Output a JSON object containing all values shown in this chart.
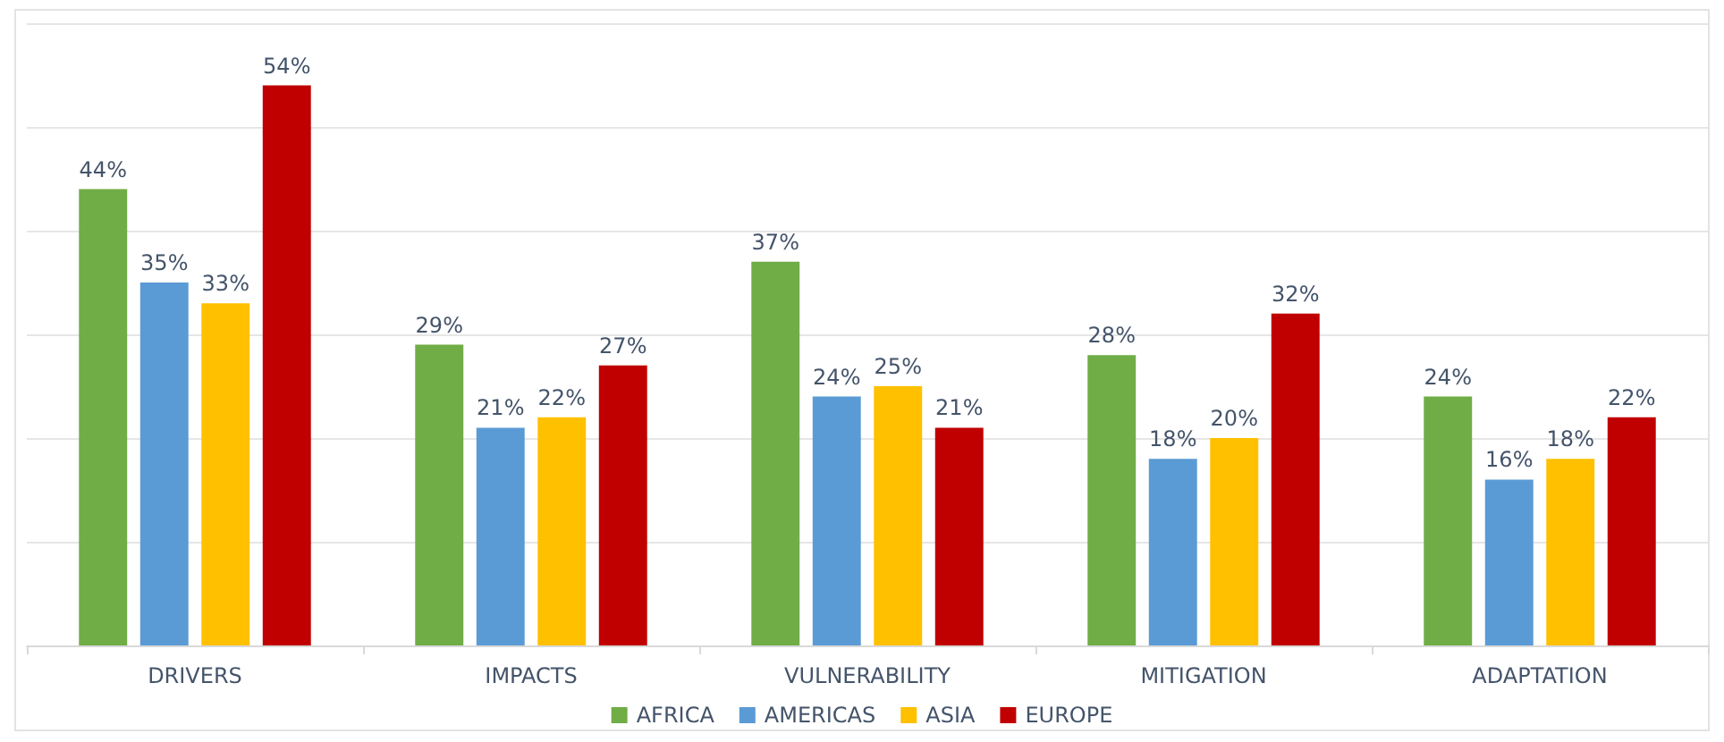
{
  "chart_data": {
    "type": "bar",
    "categories": [
      "DRIVERS",
      "IMPACTS",
      "VULNERABILITY",
      "MITIGATION",
      "ADAPTATION"
    ],
    "series": [
      {
        "name": "AFRICA",
        "color": "#70ad47",
        "values": [
          44,
          29,
          37,
          28,
          24
        ],
        "value_labels": [
          "44%",
          "29%",
          "37%",
          "28%",
          "24%"
        ]
      },
      {
        "name": "AMERICAS",
        "color": "#5b9bd5",
        "values": [
          35,
          21,
          24,
          18,
          16
        ],
        "value_labels": [
          "35%",
          "21%",
          "24%",
          "18%",
          "16%"
        ]
      },
      {
        "name": "ASIA",
        "color": "#ffc000",
        "values": [
          33,
          22,
          25,
          20,
          18
        ],
        "value_labels": [
          "33%",
          "22%",
          "25%",
          "20%",
          "18%"
        ]
      },
      {
        "name": "EUROPE",
        "color": "#c00000",
        "values": [
          54,
          27,
          21,
          32,
          22
        ],
        "value_labels": [
          "54%",
          "27%",
          "21%",
          "32%",
          "22%"
        ]
      }
    ],
    "ylim": [
      0,
      60
    ],
    "yticks": [
      0,
      10,
      20,
      30,
      40,
      50,
      60
    ],
    "grid": "y",
    "legend": "bottom",
    "tick_labels": "x"
  }
}
